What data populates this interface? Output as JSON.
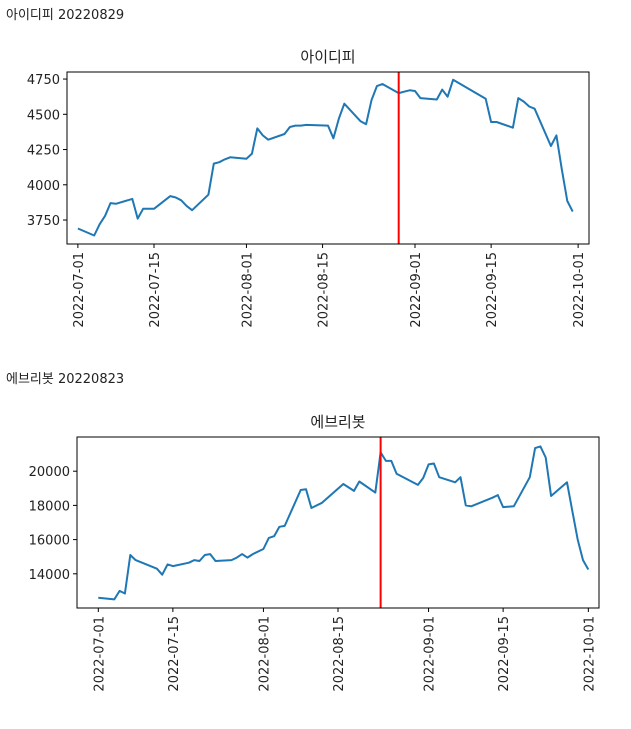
{
  "sections": [
    {
      "label": "아이디피  20220829"
    },
    {
      "label": "에브리봇  20220823"
    }
  ],
  "colors": {
    "line": "#1f77b4",
    "marker_line": "#ff0000",
    "axes": "#000000"
  },
  "chart_data": [
    {
      "type": "line",
      "title": "아이디피",
      "xlabel": "",
      "ylabel": "",
      "x_ticks": [
        "2022-07-01",
        "2022-07-15",
        "2022-08-01",
        "2022-08-15",
        "2022-09-01",
        "2022-09-15",
        "2022-10-01"
      ],
      "y_ticks": [
        3750,
        4000,
        4250,
        4500,
        4750
      ],
      "xlim": [
        "2022-06-29",
        "2022-10-03"
      ],
      "ylim": [
        3580,
        4800
      ],
      "marker_date": "2022-08-29",
      "grid": false,
      "series": [
        {
          "points": [
            [
              "2022-07-01",
              3690
            ],
            [
              "2022-07-04",
              3640
            ],
            [
              "2022-07-05",
              3720
            ],
            [
              "2022-07-06",
              3780
            ],
            [
              "2022-07-07",
              3870
            ],
            [
              "2022-07-08",
              3865
            ],
            [
              "2022-07-11",
              3900
            ],
            [
              "2022-07-12",
              3760
            ],
            [
              "2022-07-13",
              3830
            ],
            [
              "2022-07-14",
              3830
            ],
            [
              "2022-07-15",
              3830
            ],
            [
              "2022-07-18",
              3920
            ],
            [
              "2022-07-19",
              3910
            ],
            [
              "2022-07-20",
              3890
            ],
            [
              "2022-07-21",
              3850
            ],
            [
              "2022-07-22",
              3820
            ],
            [
              "2022-07-25",
              3930
            ],
            [
              "2022-07-26",
              4150
            ],
            [
              "2022-07-27",
              4160
            ],
            [
              "2022-07-28",
              4180
            ],
            [
              "2022-07-29",
              4195
            ],
            [
              "2022-08-01",
              4185
            ],
            [
              "2022-08-02",
              4220
            ],
            [
              "2022-08-03",
              4400
            ],
            [
              "2022-08-04",
              4350
            ],
            [
              "2022-08-05",
              4320
            ],
            [
              "2022-08-08",
              4360
            ],
            [
              "2022-08-09",
              4410
            ],
            [
              "2022-08-10",
              4420
            ],
            [
              "2022-08-11",
              4420
            ],
            [
              "2022-08-12",
              4425
            ],
            [
              "2022-08-16",
              4420
            ],
            [
              "2022-08-17",
              4330
            ],
            [
              "2022-08-18",
              4470
            ],
            [
              "2022-08-19",
              4575
            ],
            [
              "2022-08-22",
              4450
            ],
            [
              "2022-08-23",
              4430
            ],
            [
              "2022-08-24",
              4600
            ],
            [
              "2022-08-25",
              4700
            ],
            [
              "2022-08-26",
              4715
            ],
            [
              "2022-08-29",
              4650
            ],
            [
              "2022-08-30",
              4660
            ],
            [
              "2022-08-31",
              4670
            ],
            [
              "2022-09-01",
              4665
            ],
            [
              "2022-09-02",
              4615
            ],
            [
              "2022-09-05",
              4605
            ],
            [
              "2022-09-06",
              4675
            ],
            [
              "2022-09-07",
              4625
            ],
            [
              "2022-09-08",
              4745
            ],
            [
              "2022-09-14",
              4610
            ],
            [
              "2022-09-15",
              4445
            ],
            [
              "2022-09-16",
              4445
            ],
            [
              "2022-09-19",
              4405
            ],
            [
              "2022-09-20",
              4615
            ],
            [
              "2022-09-21",
              4590
            ],
            [
              "2022-09-22",
              4555
            ],
            [
              "2022-09-23",
              4540
            ],
            [
              "2022-09-26",
              4275
            ],
            [
              "2022-09-27",
              4350
            ],
            [
              "2022-09-28",
              4110
            ],
            [
              "2022-09-29",
              3885
            ],
            [
              "2022-09-30",
              3810
            ]
          ]
        }
      ]
    },
    {
      "type": "line",
      "title": "에브리봇",
      "xlabel": "",
      "ylabel": "",
      "x_ticks": [
        "2022-07-01",
        "2022-07-15",
        "2022-08-01",
        "2022-08-15",
        "2022-09-01",
        "2022-09-15",
        "2022-10-01"
      ],
      "y_ticks": [
        14000,
        16000,
        18000,
        20000
      ],
      "xlim": [
        "2022-06-27",
        "2022-10-03"
      ],
      "ylim": [
        12000,
        22000
      ],
      "marker_date": "2022-08-23",
      "grid": false,
      "series": [
        {
          "points": [
            [
              "2022-07-01",
              12600
            ],
            [
              "2022-07-04",
              12500
            ],
            [
              "2022-07-05",
              13000
            ],
            [
              "2022-07-06",
              12850
            ],
            [
              "2022-07-07",
              15100
            ],
            [
              "2022-07-08",
              14800
            ],
            [
              "2022-07-12",
              14300
            ],
            [
              "2022-07-13",
              13950
            ],
            [
              "2022-07-14",
              14550
            ],
            [
              "2022-07-15",
              14450
            ],
            [
              "2022-07-18",
              14650
            ],
            [
              "2022-07-19",
              14800
            ],
            [
              "2022-07-20",
              14750
            ],
            [
              "2022-07-21",
              15100
            ],
            [
              "2022-07-22",
              15150
            ],
            [
              "2022-07-23",
              14750
            ],
            [
              "2022-07-26",
              14800
            ],
            [
              "2022-07-27",
              14950
            ],
            [
              "2022-07-28",
              15150
            ],
            [
              "2022-07-29",
              14950
            ],
            [
              "2022-07-30",
              15150
            ],
            [
              "2022-08-01",
              15450
            ],
            [
              "2022-08-02",
              16100
            ],
            [
              "2022-08-03",
              16200
            ],
            [
              "2022-08-04",
              16750
            ],
            [
              "2022-08-05",
              16800
            ],
            [
              "2022-08-08",
              18900
            ],
            [
              "2022-08-09",
              18950
            ],
            [
              "2022-08-10",
              17850
            ],
            [
              "2022-08-12",
              18150
            ],
            [
              "2022-08-16",
              19250
            ],
            [
              "2022-08-18",
              18850
            ],
            [
              "2022-08-19",
              19400
            ],
            [
              "2022-08-22",
              18750
            ],
            [
              "2022-08-23",
              21100
            ],
            [
              "2022-08-24",
              20600
            ],
            [
              "2022-08-25",
              20600
            ],
            [
              "2022-08-26",
              19850
            ],
            [
              "2022-08-30",
              19200
            ],
            [
              "2022-08-31",
              19600
            ],
            [
              "2022-09-01",
              20400
            ],
            [
              "2022-09-02",
              20450
            ],
            [
              "2022-09-03",
              19650
            ],
            [
              "2022-09-06",
              19350
            ],
            [
              "2022-09-07",
              19650
            ],
            [
              "2022-09-08",
              18000
            ],
            [
              "2022-09-09",
              17950
            ],
            [
              "2022-09-13",
              18450
            ],
            [
              "2022-09-14",
              18600
            ],
            [
              "2022-09-15",
              17900
            ],
            [
              "2022-09-17",
              17950
            ],
            [
              "2022-09-20",
              19650
            ],
            [
              "2022-09-21",
              21350
            ],
            [
              "2022-09-22",
              21450
            ],
            [
              "2022-09-23",
              20800
            ],
            [
              "2022-09-24",
              18550
            ],
            [
              "2022-09-27",
              19350
            ],
            [
              "2022-09-28",
              17650
            ],
            [
              "2022-09-29",
              16000
            ],
            [
              "2022-09-30",
              14800
            ],
            [
              "2022-10-01",
              14250
            ]
          ]
        }
      ]
    }
  ]
}
